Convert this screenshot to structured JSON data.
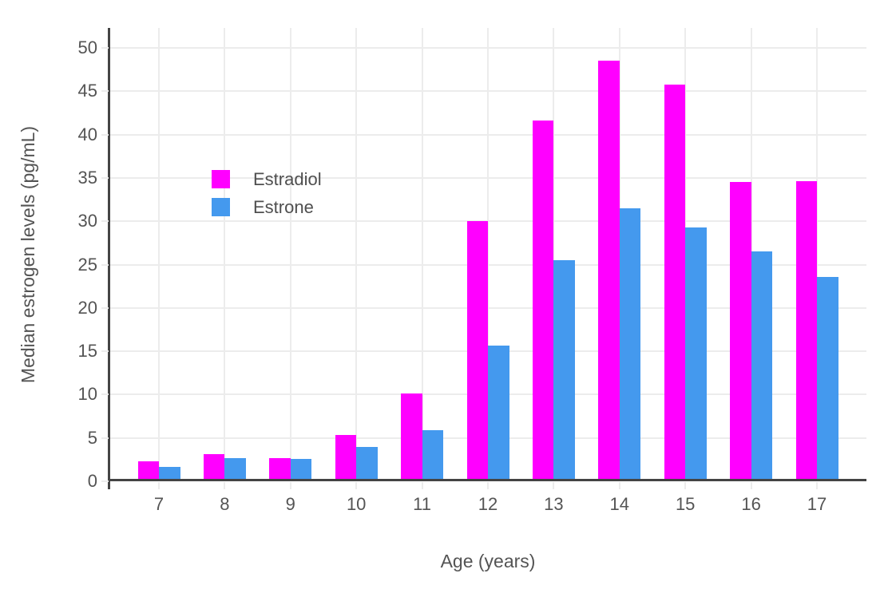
{
  "chart_data": {
    "type": "bar",
    "title": "",
    "xlabel": "Age (years)",
    "ylabel": "Median estrogen levels (pg/mL)",
    "categories": [
      "7",
      "8",
      "9",
      "10",
      "11",
      "12",
      "13",
      "14",
      "15",
      "16",
      "17"
    ],
    "series": [
      {
        "name": "Estradiol",
        "color": "#FF00FF",
        "values": [
          2.3,
          3.1,
          2.7,
          5.3,
          10.1,
          30.0,
          41.6,
          48.5,
          45.8,
          34.5,
          34.6
        ]
      },
      {
        "name": "Estrone",
        "color": "#4499EE",
        "values": [
          1.7,
          2.7,
          2.6,
          4.0,
          5.9,
          15.7,
          25.5,
          31.5,
          29.3,
          26.5,
          23.6
        ]
      }
    ],
    "yticks": [
      0,
      5,
      10,
      15,
      20,
      25,
      30,
      35,
      40,
      45,
      50
    ],
    "ylim": [
      0,
      52.3
    ],
    "grid": true,
    "bar_mode": "grouped",
    "legend_position": "inside-top-left",
    "colors": {
      "background": "#FFFFFF",
      "axis_line": "#444444",
      "grid_line": "#ECECEC",
      "tick_text": "#545454"
    }
  }
}
